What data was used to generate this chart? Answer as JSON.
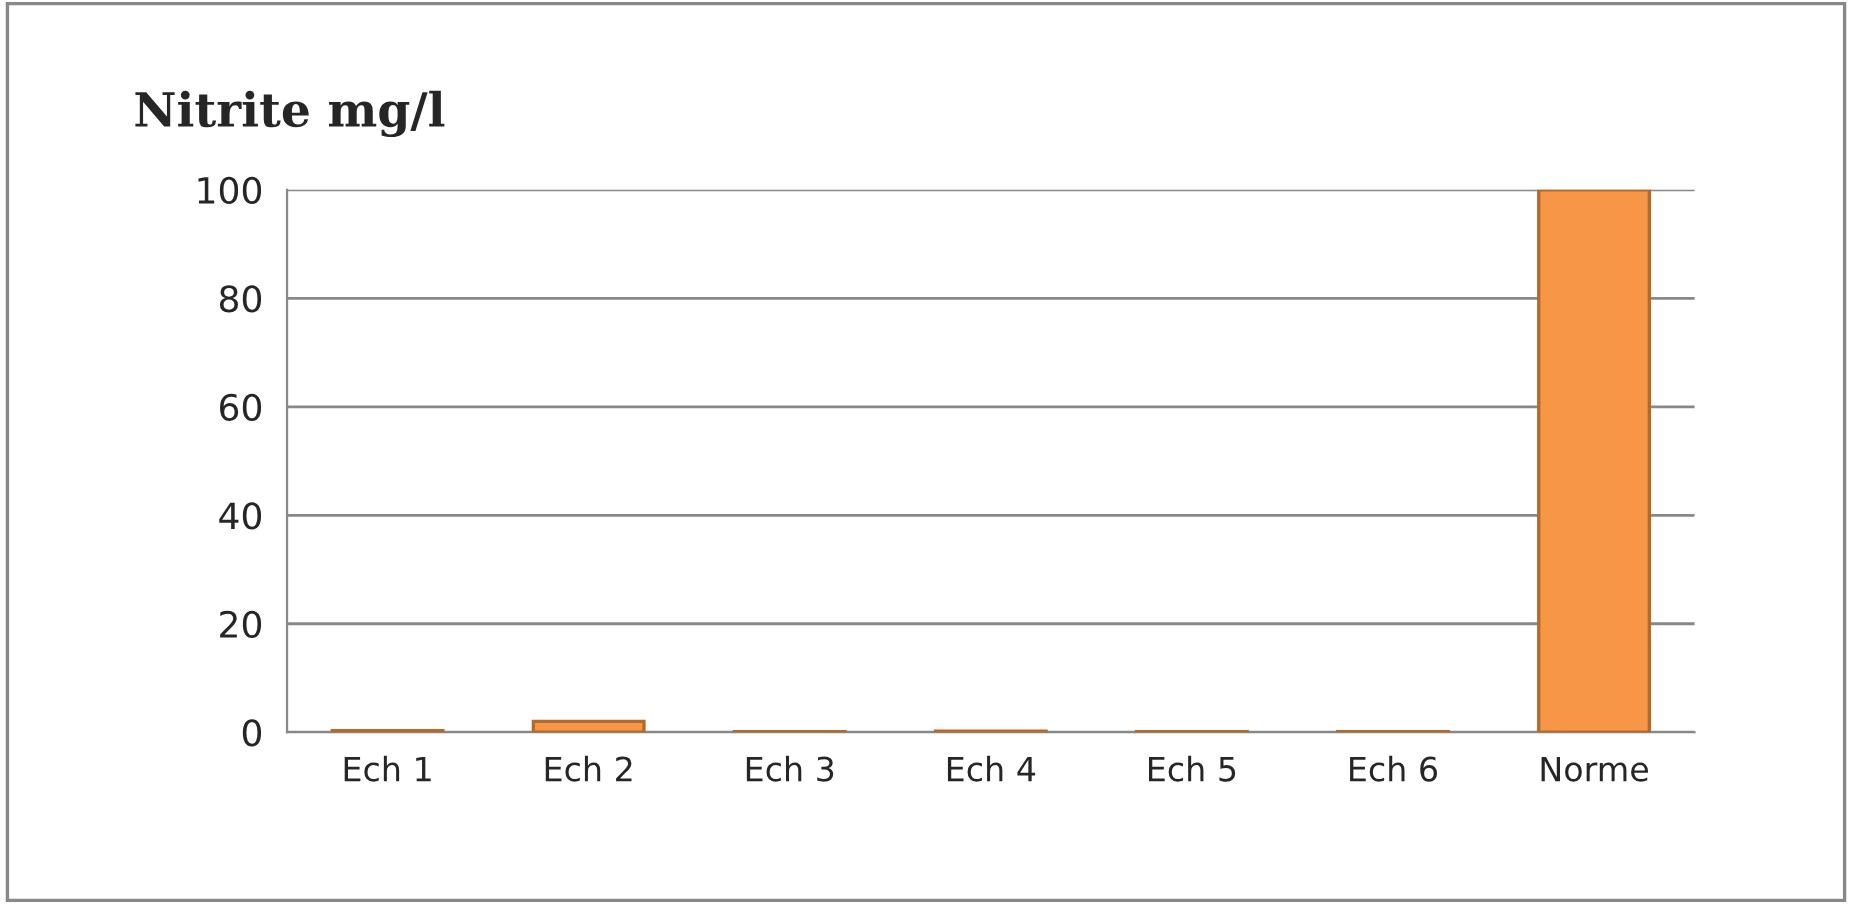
{
  "chart_data": {
    "type": "bar",
    "title": "Nitrite mg/l",
    "categories": [
      "Ech 1",
      "Ech 2",
      "Ech 3",
      "Ech 4",
      "Ech 5",
      "Ech 6",
      "Norme"
    ],
    "values": [
      0.3,
      2,
      0.1,
      0.2,
      0.1,
      0.1,
      100
    ],
    "color": "#f79646",
    "ylim": [
      0,
      100
    ],
    "yticks": [
      0,
      20,
      40,
      60,
      80,
      100
    ],
    "grid": "y",
    "legend": false
  }
}
